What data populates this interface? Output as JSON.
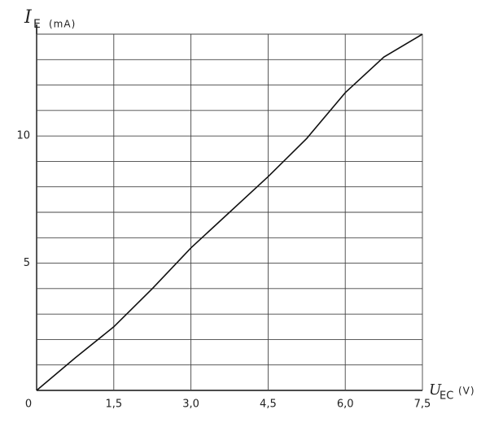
{
  "chart_data": {
    "type": "line",
    "y_label": {
      "symbol": "I",
      "subscript": "E",
      "unit": "(mA)"
    },
    "x_label": {
      "symbol": "U",
      "subscript": "EC",
      "unit": "(V)"
    },
    "x": [
      0,
      0.75,
      1.5,
      2.25,
      3.0,
      3.75,
      4.5,
      5.25,
      6.0,
      6.75,
      7.5
    ],
    "series": [
      {
        "color": "#111111",
        "values": [
          0,
          1.28,
          2.5,
          4.0,
          5.6,
          7.0,
          8.4,
          9.9,
          11.7,
          13.1,
          14
        ]
      }
    ],
    "xlim": [
      0,
      7.5
    ],
    "xticks": [
      0,
      {
        "value": 1.5,
        "label": "1,5"
      },
      {
        "value": 3.0,
        "label": "3,0"
      },
      {
        "value": 4.5,
        "label": "4,5"
      },
      {
        "value": 6.0,
        "label": "6,0"
      },
      {
        "value": 7.5,
        "label": "7,5"
      }
    ],
    "ylim": [
      0,
      14
    ],
    "yticks": [
      5,
      10
    ],
    "ygrid": [
      1,
      2,
      3,
      4,
      5,
      6,
      7,
      8,
      9,
      10,
      11,
      12,
      13,
      14
    ],
    "grid": true
  }
}
